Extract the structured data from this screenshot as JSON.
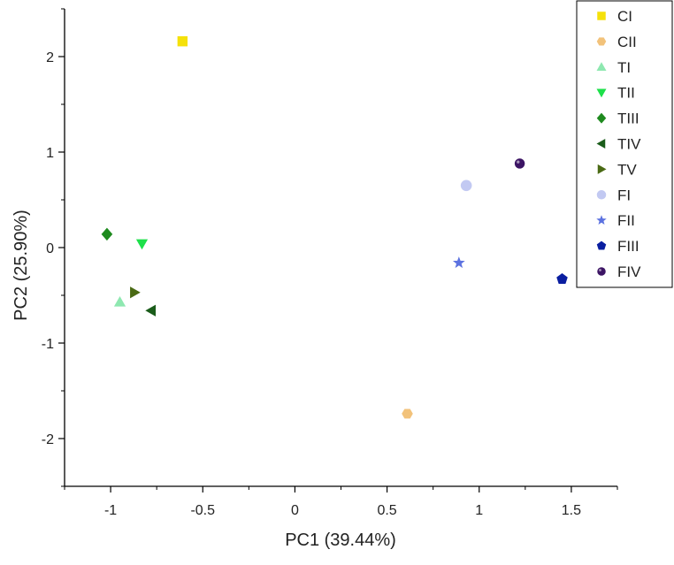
{
  "chart_data": {
    "type": "scatter",
    "title": "",
    "xlabel": "PC1 (39.44%)",
    "ylabel": "PC2 (25.90%)",
    "xlim": [
      -1.25,
      1.75
    ],
    "ylim": [
      -2.5,
      2.5
    ],
    "x_ticks": [
      -1,
      -0.5,
      0,
      0.5,
      1,
      1.5
    ],
    "x_tick_labels": [
      "-1",
      "-0.5",
      "0",
      "0.5",
      "1",
      "1.5"
    ],
    "y_ticks": [
      -2,
      -1,
      0,
      1,
      2
    ],
    "y_tick_labels": [
      "-2",
      "-1",
      "0",
      "1",
      "2"
    ],
    "grid": false,
    "legend_position": "top-right",
    "series": [
      {
        "name": "CI",
        "marker": "square",
        "color": "#f5e10a",
        "x": -0.61,
        "y": 2.16
      },
      {
        "name": "CII",
        "marker": "hexagon",
        "color": "#f2c27a",
        "x": 0.61,
        "y": -1.74
      },
      {
        "name": "TI",
        "marker": "triangle-up",
        "color": "#8ee8b0",
        "x": -0.95,
        "y": -0.57
      },
      {
        "name": "TII",
        "marker": "triangle-down",
        "color": "#1de04a",
        "x": -0.83,
        "y": 0.04
      },
      {
        "name": "TIII",
        "marker": "diamond",
        "color": "#1e8a1e",
        "x": -1.02,
        "y": 0.14
      },
      {
        "name": "TIV",
        "marker": "triangle-left",
        "color": "#1a5c1a",
        "x": -0.78,
        "y": -0.66
      },
      {
        "name": "TV",
        "marker": "triangle-right",
        "color": "#4a6a14",
        "x": -0.87,
        "y": -0.47
      },
      {
        "name": "FI",
        "marker": "circle",
        "color": "#c2c9f2",
        "x": 0.93,
        "y": 0.65
      },
      {
        "name": "FII",
        "marker": "star",
        "color": "#5c72e0",
        "x": 0.89,
        "y": -0.16
      },
      {
        "name": "FIII",
        "marker": "pentagon",
        "color": "#0a1ea0",
        "x": 1.45,
        "y": -0.33
      },
      {
        "name": "FIV",
        "marker": "sphere",
        "color": "#3c1464",
        "x": 1.22,
        "y": 0.88
      }
    ]
  }
}
